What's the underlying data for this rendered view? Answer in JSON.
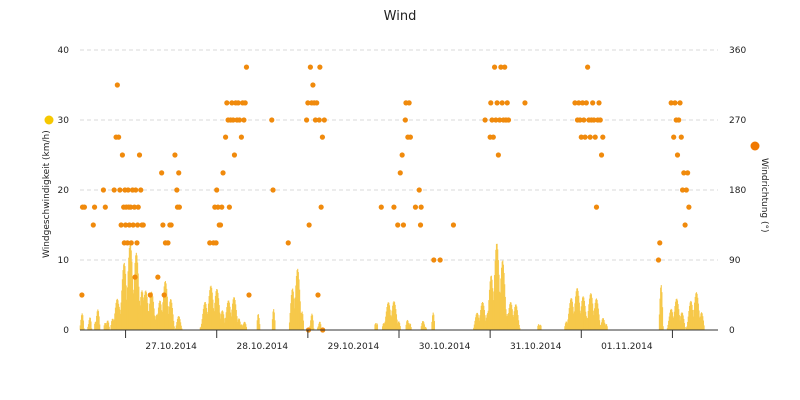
{
  "chart_data": {
    "type": "bar+scatter",
    "title": "Wind",
    "left_axis": {
      "label": "Windgeschwindigkeit (km/h)",
      "min": 0,
      "max": 40,
      "ticks": [
        "0",
        "10",
        "20",
        "30",
        "40"
      ]
    },
    "right_axis": {
      "label": "Windrichtung (°)",
      "min": 0,
      "max": 360,
      "ticks": [
        "0",
        "90",
        "180",
        "270",
        "360"
      ]
    },
    "x_axis": {
      "start": "2014-10-26T12:00",
      "end": "2014-11-02T12:00",
      "labels": [
        "27.10.2014",
        "28.10.2014",
        "29.10.2014",
        "30.10.2014",
        "31.10.2014",
        "01.11.2014"
      ]
    },
    "grid": "horizontal dashed",
    "legend": "markers beside each axis title",
    "colors": {
      "speed": "#f6c84a",
      "direction": "#f08a0c",
      "speed_legend": "#f6c800",
      "direction_legend": "#f07800"
    },
    "speed_series": {
      "name": "Windgeschwindigkeit",
      "bursts": [
        {
          "center": "2014-10-26T12:30",
          "width_h": 0.6,
          "peak": 2.5
        },
        {
          "center": "2014-10-26T14:30",
          "width_h": 0.6,
          "peak": 2.2
        },
        {
          "center": "2014-10-26T16:30",
          "width_h": 0.8,
          "peak": 3.5
        },
        {
          "center": "2014-10-26T19:00",
          "width_h": 0.8,
          "peak": 2.0
        },
        {
          "center": "2014-10-26T22:00",
          "width_h": 2.0,
          "peak": 4.5
        },
        {
          "center": "2014-10-27T01:30",
          "width_h": 4.0,
          "peak": 12.5
        },
        {
          "center": "2014-10-27T06:00",
          "width_h": 3.0,
          "peak": 6.0
        },
        {
          "center": "2014-10-27T10:30",
          "width_h": 2.5,
          "peak": 7.0
        },
        {
          "center": "2014-10-27T14:00",
          "width_h": 1.0,
          "peak": 2.0
        },
        {
          "center": "2014-10-27T23:00",
          "width_h": 3.5,
          "peak": 6.5
        },
        {
          "center": "2014-10-28T04:00",
          "width_h": 2.5,
          "peak": 5.0
        },
        {
          "center": "2014-10-28T07:00",
          "width_h": 1.0,
          "peak": 1.5
        },
        {
          "center": "2014-10-28T11:00",
          "width_h": 0.5,
          "peak": 2.5
        },
        {
          "center": "2014-10-28T15:00",
          "width_h": 0.5,
          "peak": 3.0
        },
        {
          "center": "2014-10-28T21:00",
          "width_h": 2.0,
          "peak": 9.0
        },
        {
          "center": "2014-10-29T01:00",
          "width_h": 0.6,
          "peak": 2.5
        },
        {
          "center": "2014-10-29T03:00",
          "width_h": 0.6,
          "peak": 1.5
        },
        {
          "center": "2014-10-29T18:00",
          "width_h": 0.5,
          "peak": 2.0
        },
        {
          "center": "2014-10-29T22:00",
          "width_h": 2.5,
          "peak": 4.5
        },
        {
          "center": "2014-10-30T02:30",
          "width_h": 0.8,
          "peak": 2.0
        },
        {
          "center": "2014-10-30T06:30",
          "width_h": 0.8,
          "peak": 1.5
        },
        {
          "center": "2014-10-30T09:00",
          "width_h": 0.5,
          "peak": 2.5
        },
        {
          "center": "2014-10-30T22:00",
          "width_h": 2.5,
          "peak": 4.0
        },
        {
          "center": "2014-10-31T02:00",
          "width_h": 3.0,
          "peak": 12.5
        },
        {
          "center": "2014-10-31T06:00",
          "width_h": 2.0,
          "peak": 4.5
        },
        {
          "center": "2014-10-31T13:00",
          "width_h": 0.6,
          "peak": 1.5
        },
        {
          "center": "2014-10-31T23:00",
          "width_h": 3.5,
          "peak": 6.0
        },
        {
          "center": "2014-11-01T03:00",
          "width_h": 2.5,
          "peak": 5.5
        },
        {
          "center": "2014-11-01T06:00",
          "width_h": 1.0,
          "peak": 2.0
        },
        {
          "center": "2014-11-01T21:00",
          "width_h": 0.6,
          "peak": 6.5
        },
        {
          "center": "2014-11-02T01:00",
          "width_h": 2.5,
          "peak": 4.5
        },
        {
          "center": "2014-11-02T06:00",
          "width_h": 2.5,
          "peak": 5.5
        }
      ]
    },
    "direction_series": {
      "name": "Windrichtung",
      "points": [
        [
          "2014-10-26T12:30",
          45
        ],
        [
          "2014-10-26T12:40",
          158
        ],
        [
          "2014-10-26T13:10",
          158
        ],
        [
          "2014-10-26T15:30",
          135
        ],
        [
          "2014-10-26T15:50",
          158
        ],
        [
          "2014-10-26T18:10",
          180
        ],
        [
          "2014-10-26T18:40",
          158
        ],
        [
          "2014-10-26T21:00",
          180
        ],
        [
          "2014-10-26T21:30",
          248
        ],
        [
          "2014-10-26T21:50",
          315
        ],
        [
          "2014-10-26T22:10",
          248
        ],
        [
          "2014-10-26T22:30",
          180
        ],
        [
          "2014-10-26T22:50",
          135
        ],
        [
          "2014-10-26T23:10",
          225
        ],
        [
          "2014-10-26T23:30",
          158
        ],
        [
          "2014-10-26T23:40",
          112
        ],
        [
          "2014-10-26T23:50",
          180
        ],
        [
          "2014-10-27T00:00",
          135
        ],
        [
          "2014-10-27T00:10",
          158
        ],
        [
          "2014-10-27T00:30",
          112
        ],
        [
          "2014-10-27T00:40",
          180
        ],
        [
          "2014-10-27T00:50",
          158
        ],
        [
          "2014-10-27T01:00",
          135
        ],
        [
          "2014-10-27T01:20",
          158
        ],
        [
          "2014-10-27T01:30",
          112
        ],
        [
          "2014-10-27T01:50",
          180
        ],
        [
          "2014-10-27T02:00",
          135
        ],
        [
          "2014-10-27T02:20",
          158
        ],
        [
          "2014-10-27T02:30",
          68
        ],
        [
          "2014-10-27T02:40",
          180
        ],
        [
          "2014-10-27T03:00",
          112
        ],
        [
          "2014-10-27T03:10",
          135
        ],
        [
          "2014-10-27T03:20",
          158
        ],
        [
          "2014-10-27T03:40",
          225
        ],
        [
          "2014-10-27T04:00",
          180
        ],
        [
          "2014-10-27T04:20",
          135
        ],
        [
          "2014-10-27T04:40",
          135
        ],
        [
          "2014-10-27T06:30",
          45
        ],
        [
          "2014-10-27T08:30",
          68
        ],
        [
          "2014-10-27T09:30",
          202
        ],
        [
          "2014-10-27T09:50",
          135
        ],
        [
          "2014-10-27T10:10",
          45
        ],
        [
          "2014-10-27T10:30",
          112
        ],
        [
          "2014-10-27T11:10",
          112
        ],
        [
          "2014-10-27T11:40",
          135
        ],
        [
          "2014-10-27T12:00",
          135
        ],
        [
          "2014-10-27T13:00",
          225
        ],
        [
          "2014-10-27T13:30",
          180
        ],
        [
          "2014-10-27T13:40",
          158
        ],
        [
          "2014-10-27T14:00",
          202
        ],
        [
          "2014-10-27T14:10",
          158
        ],
        [
          "2014-10-27T22:10",
          112
        ],
        [
          "2014-10-27T23:10",
          112
        ],
        [
          "2014-10-27T23:30",
          158
        ],
        [
          "2014-10-27T23:50",
          112
        ],
        [
          "2014-10-28T00:00",
          180
        ],
        [
          "2014-10-28T00:20",
          158
        ],
        [
          "2014-10-28T00:40",
          135
        ],
        [
          "2014-10-28T01:00",
          135
        ],
        [
          "2014-10-28T01:20",
          158
        ],
        [
          "2014-10-28T01:40",
          202
        ],
        [
          "2014-10-28T02:20",
          248
        ],
        [
          "2014-10-28T02:40",
          292
        ],
        [
          "2014-10-28T03:00",
          270
        ],
        [
          "2014-10-28T03:20",
          158
        ],
        [
          "2014-10-28T03:40",
          270
        ],
        [
          "2014-10-28T04:00",
          292
        ],
        [
          "2014-10-28T04:20",
          270
        ],
        [
          "2014-10-28T04:40",
          225
        ],
        [
          "2014-10-28T05:00",
          292
        ],
        [
          "2014-10-28T05:20",
          270
        ],
        [
          "2014-10-28T05:40",
          292
        ],
        [
          "2014-10-28T06:00",
          270
        ],
        [
          "2014-10-28T06:30",
          248
        ],
        [
          "2014-10-28T06:50",
          292
        ],
        [
          "2014-10-28T07:10",
          270
        ],
        [
          "2014-10-28T07:30",
          292
        ],
        [
          "2014-10-28T07:50",
          338
        ],
        [
          "2014-10-28T08:30",
          45
        ],
        [
          "2014-10-28T14:30",
          270
        ],
        [
          "2014-10-28T14:50",
          180
        ],
        [
          "2014-10-28T18:50",
          112
        ],
        [
          "2014-10-28T23:40",
          270
        ],
        [
          "2014-10-29T00:00",
          292
        ],
        [
          "2014-10-29T00:20",
          135
        ],
        [
          "2014-10-29T00:40",
          338
        ],
        [
          "2014-10-29T01:00",
          292
        ],
        [
          "2014-10-29T01:20",
          315
        ],
        [
          "2014-10-29T01:40",
          292
        ],
        [
          "2014-10-29T02:00",
          270
        ],
        [
          "2014-10-29T02:20",
          292
        ],
        [
          "2014-10-29T02:40",
          45
        ],
        [
          "2014-10-29T03:00",
          270
        ],
        [
          "2014-10-29T03:10",
          338
        ],
        [
          "2014-10-29T03:30",
          158
        ],
        [
          "2014-10-29T03:50",
          248
        ],
        [
          "2014-10-29T03:55",
          0
        ],
        [
          "2014-10-29T04:20",
          270
        ],
        [
          "2014-10-29T00:10",
          0
        ],
        [
          "2014-10-29T19:20",
          158
        ],
        [
          "2014-10-29T22:40",
          158
        ],
        [
          "2014-10-29T23:40",
          135
        ],
        [
          "2014-10-30T00:20",
          202
        ],
        [
          "2014-10-30T00:50",
          225
        ],
        [
          "2014-10-30T01:10",
          135
        ],
        [
          "2014-10-30T01:40",
          270
        ],
        [
          "2014-10-30T01:50",
          292
        ],
        [
          "2014-10-30T02:20",
          248
        ],
        [
          "2014-10-30T02:40",
          292
        ],
        [
          "2014-10-30T03:00",
          248
        ],
        [
          "2014-10-30T04:20",
          158
        ],
        [
          "2014-10-30T05:20",
          180
        ],
        [
          "2014-10-30T05:40",
          135
        ],
        [
          "2014-10-30T05:50",
          158
        ],
        [
          "2014-10-30T09:10",
          90
        ],
        [
          "2014-10-30T10:50",
          90
        ],
        [
          "2014-10-30T14:20",
          135
        ],
        [
          "2014-10-30T22:40",
          270
        ],
        [
          "2014-10-31T00:00",
          248
        ],
        [
          "2014-10-31T00:10",
          292
        ],
        [
          "2014-10-31T00:30",
          270
        ],
        [
          "2014-10-31T00:50",
          248
        ],
        [
          "2014-10-31T01:10",
          338
        ],
        [
          "2014-10-31T01:30",
          270
        ],
        [
          "2014-10-31T01:50",
          292
        ],
        [
          "2014-10-31T02:10",
          225
        ],
        [
          "2014-10-31T02:30",
          270
        ],
        [
          "2014-10-31T02:50",
          338
        ],
        [
          "2014-10-31T03:10",
          292
        ],
        [
          "2014-10-31T03:30",
          270
        ],
        [
          "2014-10-31T03:50",
          338
        ],
        [
          "2014-10-31T04:10",
          270
        ],
        [
          "2014-10-31T04:30",
          292
        ],
        [
          "2014-10-31T04:50",
          270
        ],
        [
          "2014-10-31T09:10",
          292
        ],
        [
          "2014-10-31T22:20",
          292
        ],
        [
          "2014-10-31T23:00",
          270
        ],
        [
          "2014-10-31T23:20",
          292
        ],
        [
          "2014-10-31T23:40",
          270
        ],
        [
          "2014-11-01T00:00",
          248
        ],
        [
          "2014-11-01T00:20",
          292
        ],
        [
          "2014-11-01T00:40",
          270
        ],
        [
          "2014-11-01T01:00",
          248
        ],
        [
          "2014-11-01T01:20",
          292
        ],
        [
          "2014-11-01T01:40",
          338
        ],
        [
          "2014-11-01T02:00",
          270
        ],
        [
          "2014-11-01T02:20",
          248
        ],
        [
          "2014-11-01T02:40",
          270
        ],
        [
          "2014-11-01T03:00",
          292
        ],
        [
          "2014-11-01T03:20",
          270
        ],
        [
          "2014-11-01T03:40",
          248
        ],
        [
          "2014-11-01T04:00",
          158
        ],
        [
          "2014-11-01T04:20",
          270
        ],
        [
          "2014-11-01T04:40",
          292
        ],
        [
          "2014-11-01T05:00",
          270
        ],
        [
          "2014-11-01T05:20",
          225
        ],
        [
          "2014-11-01T05:40",
          248
        ],
        [
          "2014-11-01T20:20",
          90
        ],
        [
          "2014-11-01T20:40",
          112
        ],
        [
          "2014-11-01T23:40",
          292
        ],
        [
          "2014-11-02T00:20",
          248
        ],
        [
          "2014-11-02T00:40",
          292
        ],
        [
          "2014-11-02T01:00",
          270
        ],
        [
          "2014-11-02T01:20",
          225
        ],
        [
          "2014-11-02T01:40",
          270
        ],
        [
          "2014-11-02T02:00",
          292
        ],
        [
          "2014-11-02T02:20",
          248
        ],
        [
          "2014-11-02T02:40",
          180
        ],
        [
          "2014-11-02T03:00",
          202
        ],
        [
          "2014-11-02T03:20",
          135
        ],
        [
          "2014-11-02T03:40",
          180
        ],
        [
          "2014-11-02T04:00",
          202
        ],
        [
          "2014-11-02T04:20",
          158
        ]
      ]
    }
  }
}
